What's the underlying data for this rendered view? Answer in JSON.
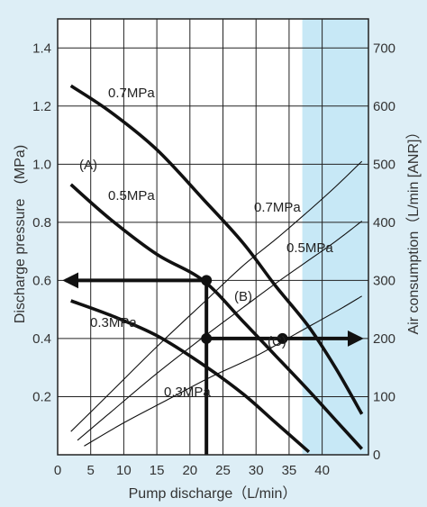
{
  "chart_data": {
    "type": "line",
    "xlabel": "Pump discharge（L/min）",
    "ylabel": "Discharge pressure　(MPa)",
    "y2label": "Air consumption（L/min [ANR]）",
    "xlim": [
      0,
      47
    ],
    "ylim": [
      0,
      1.5
    ],
    "y2lim": [
      0,
      750
    ],
    "x_ticks": [
      "0",
      "5",
      "10",
      "15",
      "20",
      "25",
      "30",
      "35",
      "40"
    ],
    "x_tick_values": [
      0,
      5,
      10,
      15,
      20,
      25,
      30,
      35,
      40
    ],
    "y_ticks": [
      "0.2",
      "0.4",
      "0.6",
      "0.8",
      "1.0",
      "1.2",
      "1.4"
    ],
    "y_tick_values": [
      0.2,
      0.4,
      0.6,
      0.8,
      1.0,
      1.2,
      1.4
    ],
    "y2_ticks": [
      "0",
      "100",
      "200",
      "300",
      "400",
      "500",
      "600",
      "700"
    ],
    "y2_tick_values": [
      0,
      100,
      200,
      300,
      400,
      500,
      600,
      700
    ],
    "grid": true,
    "highlight_band": {
      "x_from": 37,
      "x_to": 47,
      "color": "#c7e8f6"
    },
    "colors": {
      "background": "#ddeef6",
      "plot": "#ffffff",
      "grid": "#222222",
      "curve": "#111111"
    },
    "performance_curves": [
      {
        "name": "0.7MPa",
        "points": [
          [
            2,
            1.27
          ],
          [
            8,
            1.18
          ],
          [
            15,
            1.05
          ],
          [
            22,
            0.88
          ],
          [
            28,
            0.73
          ],
          [
            33,
            0.58
          ],
          [
            38,
            0.44
          ],
          [
            42,
            0.3
          ],
          [
            46,
            0.14
          ]
        ]
      },
      {
        "name": "0.5MPa",
        "points": [
          [
            2,
            0.93
          ],
          [
            8,
            0.81
          ],
          [
            15,
            0.69
          ],
          [
            22,
            0.6
          ],
          [
            28,
            0.46
          ],
          [
            33,
            0.34
          ],
          [
            38,
            0.22
          ],
          [
            42,
            0.12
          ],
          [
            46,
            0.02
          ]
        ]
      },
      {
        "name": "0.3MPa",
        "points": [
          [
            2,
            0.53
          ],
          [
            8,
            0.48
          ],
          [
            15,
            0.41
          ],
          [
            22,
            0.31
          ],
          [
            28,
            0.21
          ],
          [
            33,
            0.11
          ],
          [
            38,
            0.01
          ]
        ]
      }
    ],
    "air_curves": [
      {
        "name": "0.7MPa",
        "points": [
          [
            2,
            40
          ],
          [
            8,
            107
          ],
          [
            15,
            186
          ],
          [
            22,
            261
          ],
          [
            28,
            325
          ],
          [
            33,
            371
          ],
          [
            38,
            420
          ],
          [
            42,
            461
          ],
          [
            46,
            505
          ]
        ]
      },
      {
        "name": "0.5MPa",
        "points": [
          [
            3,
            25
          ],
          [
            8,
            73
          ],
          [
            15,
            140
          ],
          [
            22,
            202
          ],
          [
            28,
            253
          ],
          [
            33,
            295
          ],
          [
            38,
            335
          ],
          [
            42,
            367
          ],
          [
            46,
            402
          ]
        ]
      },
      {
        "name": "0.3MPa",
        "points": [
          [
            4,
            15
          ],
          [
            10,
            55
          ],
          [
            17,
            97
          ],
          [
            23,
            133
          ],
          [
            30,
            170
          ],
          [
            36,
            208
          ],
          [
            42,
            246
          ],
          [
            46,
            273
          ]
        ]
      }
    ],
    "annotations": {
      "label_07_top": "0.7MPa",
      "label_05": "0.5MPa",
      "label_03": "0.3MPa",
      "label_A": "(A)",
      "label_B": "(B)",
      "label_C": "(C)",
      "label_07_air": "0.7MPa",
      "label_05_air": "0.5MPa",
      "label_03_air": "0.3MPa"
    },
    "example_points": [
      {
        "name": "B",
        "x": 22.5,
        "y": 0.6
      },
      {
        "name": "C",
        "x": 34,
        "y": 0.4
      }
    ],
    "example_lines": {
      "discharge_x": 22.5,
      "pressure_y": 0.6,
      "air_y_mpa_scale": 0.4
    }
  }
}
